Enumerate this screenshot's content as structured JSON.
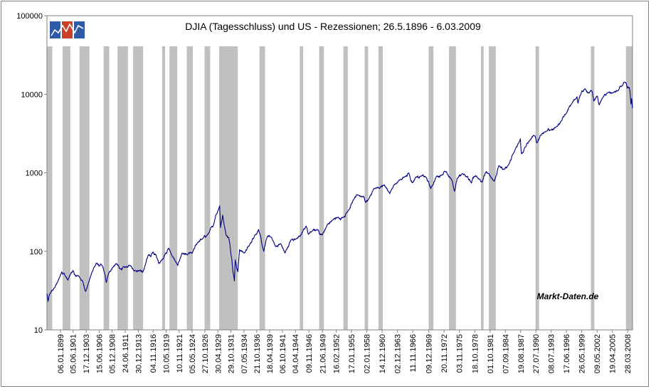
{
  "chart_data": {
    "type": "line",
    "title": "DJIA (Tagesschluss) und US - Rezessionen; 26.5.1896 - 6.03.2009",
    "watermark": "Markt-Daten.de",
    "y_scale": "log",
    "ylim": [
      10,
      100000
    ],
    "y_ticks": [
      "100000",
      "10000",
      "1000",
      "100",
      "10"
    ],
    "x_range": [
      "1896-05-26",
      "2009-03-06"
    ],
    "x_tick_labels": [
      "06.01.1899",
      "05.06.1901",
      "17.12.1903",
      "15.06.1906",
      "05.12.1908",
      "24.06.1911",
      "30.12.1913",
      "04.11.1916",
      "10.05.1919",
      "10.11.1921",
      "05.05.1924",
      "27.10.1926",
      "30.04.1929",
      "29.10.1931",
      "07.05.1934",
      "21.10.1936",
      "18.04.1939",
      "06.10.1941",
      "04.04.1944",
      "09.11.1946",
      "21.06.1949",
      "16.02.1952",
      "17.01.1955",
      "02.01.1958",
      "14.12.1960",
      "02.12.1963",
      "11.11.1966",
      "09.12.1969",
      "20.11.1972",
      "03.11.1975",
      "18.10.1978",
      "01.10.1981",
      "07.09.1984",
      "19.08.1987",
      "27.07.1990",
      "08.07.1993",
      "17.06.1996",
      "26.05.1999",
      "09.05.2002",
      "19.04.2005",
      "28.03.2008"
    ],
    "x_tick_dates": [
      "1899-01-06",
      "1901-06-05",
      "1903-12-17",
      "1906-06-15",
      "1908-12-05",
      "1911-06-24",
      "1913-12-30",
      "1916-11-04",
      "1919-05-10",
      "1921-11-10",
      "1924-05-05",
      "1926-10-27",
      "1929-04-30",
      "1931-10-29",
      "1934-05-07",
      "1936-10-21",
      "1939-04-18",
      "1941-10-06",
      "1944-04-04",
      "1946-11-09",
      "1949-06-21",
      "1952-02-16",
      "1955-01-17",
      "1958-01-02",
      "1960-12-14",
      "1963-12-02",
      "1966-11-11",
      "1969-12-09",
      "1972-11-20",
      "1975-11-03",
      "1978-10-18",
      "1981-10-01",
      "1984-09-07",
      "1987-08-19",
      "1990-07-27",
      "1993-07-08",
      "1996-06-17",
      "1999-05-26",
      "2002-05-09",
      "2005-04-19",
      "2008-03-28"
    ],
    "grid": false,
    "legend": "none",
    "colors": {
      "line": "#000080",
      "recession": "#c0c0c0",
      "logo_blue": "#2e5aa8",
      "logo_red": "#c8402a"
    },
    "recessions": [
      [
        "1896-05-26",
        "1897-06-01"
      ],
      [
        "1899-06-01",
        "1900-12-01"
      ],
      [
        "1902-09-01",
        "1904-08-01"
      ],
      [
        "1907-05-01",
        "1908-06-01"
      ],
      [
        "1910-01-01",
        "1912-01-01"
      ],
      [
        "1913-01-01",
        "1914-12-01"
      ],
      [
        "1918-08-01",
        "1919-03-01"
      ],
      [
        "1920-01-01",
        "1921-07-01"
      ],
      [
        "1923-05-01",
        "1924-07-01"
      ],
      [
        "1926-10-01",
        "1927-11-01"
      ],
      [
        "1929-08-01",
        "1933-03-01"
      ],
      [
        "1937-05-01",
        "1938-06-01"
      ],
      [
        "1945-02-01",
        "1945-10-01"
      ],
      [
        "1948-11-01",
        "1949-10-01"
      ],
      [
        "1953-07-01",
        "1954-05-01"
      ],
      [
        "1957-08-01",
        "1958-04-01"
      ],
      [
        "1960-04-01",
        "1961-02-01"
      ],
      [
        "1969-12-01",
        "1970-11-01"
      ],
      [
        "1973-11-01",
        "1975-03-01"
      ],
      [
        "1980-01-01",
        "1980-07-01"
      ],
      [
        "1981-07-01",
        "1982-11-01"
      ],
      [
        "1990-07-01",
        "1991-03-01"
      ],
      [
        "2001-03-01",
        "2001-11-01"
      ],
      [
        "2007-12-01",
        "2009-03-06"
      ]
    ],
    "series": [
      {
        "points": [
          [
            "1896-05-26",
            29
          ],
          [
            "1896-08-08",
            23
          ],
          [
            "1897-01-01",
            29
          ],
          [
            "1897-09-01",
            33
          ],
          [
            "1898-06-01",
            40
          ],
          [
            "1899-04-01",
            55
          ],
          [
            "1899-09-01",
            53
          ],
          [
            "1900-01-01",
            48
          ],
          [
            "1900-06-01",
            43
          ],
          [
            "1901-06-01",
            57
          ],
          [
            "1901-12-01",
            48
          ],
          [
            "1902-06-01",
            49
          ],
          [
            "1903-04-01",
            42
          ],
          [
            "1903-11-01",
            31
          ],
          [
            "1904-06-01",
            40
          ],
          [
            "1905-06-01",
            62
          ],
          [
            "1906-01-01",
            71
          ],
          [
            "1906-06-01",
            65
          ],
          [
            "1907-01-01",
            66
          ],
          [
            "1907-06-01",
            55
          ],
          [
            "1907-11-01",
            40
          ],
          [
            "1908-06-01",
            55
          ],
          [
            "1909-01-01",
            62
          ],
          [
            "1909-10-01",
            70
          ],
          [
            "1910-06-01",
            60
          ],
          [
            "1911-06-01",
            62
          ],
          [
            "1912-06-01",
            66
          ],
          [
            "1913-06-01",
            57
          ],
          [
            "1914-06-01",
            58
          ],
          [
            "1914-12-01",
            55
          ],
          [
            "1915-06-01",
            70
          ],
          [
            "1915-12-01",
            90
          ],
          [
            "1916-06-01",
            85
          ],
          [
            "1916-11-01",
            98
          ],
          [
            "1917-06-01",
            90
          ],
          [
            "1917-12-01",
            70
          ],
          [
            "1918-06-01",
            75
          ],
          [
            "1919-04-01",
            95
          ],
          [
            "1919-11-01",
            110
          ],
          [
            "1920-06-01",
            90
          ],
          [
            "1921-08-01",
            66
          ],
          [
            "1922-06-01",
            95
          ],
          [
            "1923-06-01",
            90
          ],
          [
            "1924-06-01",
            95
          ],
          [
            "1925-06-01",
            130
          ],
          [
            "1926-06-01",
            145
          ],
          [
            "1927-06-01",
            165
          ],
          [
            "1928-06-01",
            210
          ],
          [
            "1928-12-01",
            290
          ],
          [
            "1929-09-01",
            380
          ],
          [
            "1929-11-01",
            200
          ],
          [
            "1930-04-01",
            290
          ],
          [
            "1930-12-01",
            160
          ],
          [
            "1931-06-01",
            150
          ],
          [
            "1932-01-01",
            80
          ],
          [
            "1932-07-01",
            42
          ],
          [
            "1932-09-01",
            78
          ],
          [
            "1933-03-01",
            55
          ],
          [
            "1933-07-01",
            105
          ],
          [
            "1934-06-01",
            95
          ],
          [
            "1935-06-01",
            120
          ],
          [
            "1936-06-01",
            160
          ],
          [
            "1937-03-01",
            190
          ],
          [
            "1937-11-01",
            120
          ],
          [
            "1938-03-01",
            100
          ],
          [
            "1938-11-01",
            155
          ],
          [
            "1939-09-01",
            150
          ],
          [
            "1940-06-01",
            115
          ],
          [
            "1941-06-01",
            125
          ],
          [
            "1942-04-01",
            95
          ],
          [
            "1943-06-01",
            140
          ],
          [
            "1944-06-01",
            145
          ],
          [
            "1945-06-01",
            165
          ],
          [
            "1946-05-01",
            210
          ],
          [
            "1946-10-01",
            165
          ],
          [
            "1947-06-01",
            180
          ],
          [
            "1948-06-01",
            190
          ],
          [
            "1949-06-01",
            162
          ],
          [
            "1950-06-01",
            220
          ],
          [
            "1951-06-01",
            250
          ],
          [
            "1952-06-01",
            270
          ],
          [
            "1953-06-01",
            270
          ],
          [
            "1954-06-01",
            330
          ],
          [
            "1955-06-01",
            450
          ],
          [
            "1956-04-01",
            520
          ],
          [
            "1957-06-01",
            500
          ],
          [
            "1957-10-01",
            420
          ],
          [
            "1958-06-01",
            470
          ],
          [
            "1959-06-01",
            630
          ],
          [
            "1960-06-01",
            630
          ],
          [
            "1961-06-01",
            700
          ],
          [
            "1962-06-01",
            540
          ],
          [
            "1963-06-01",
            720
          ],
          [
            "1964-06-01",
            820
          ],
          [
            "1965-06-01",
            900
          ],
          [
            "1966-02-01",
            995
          ],
          [
            "1966-10-01",
            745
          ],
          [
            "1967-06-01",
            880
          ],
          [
            "1968-06-01",
            910
          ],
          [
            "1969-06-01",
            880
          ],
          [
            "1970-05-01",
            630
          ],
          [
            "1971-06-01",
            900
          ],
          [
            "1972-06-01",
            940
          ],
          [
            "1973-01-01",
            1050
          ],
          [
            "1974-06-01",
            800
          ],
          [
            "1974-12-01",
            580
          ],
          [
            "1975-06-01",
            850
          ],
          [
            "1976-06-01",
            980
          ],
          [
            "1977-06-01",
            900
          ],
          [
            "1978-03-01",
            740
          ],
          [
            "1978-09-01",
            900
          ],
          [
            "1979-06-01",
            850
          ],
          [
            "1980-04-01",
            760
          ],
          [
            "1980-11-01",
            1000
          ],
          [
            "1981-06-01",
            980
          ],
          [
            "1982-08-01",
            780
          ],
          [
            "1983-06-01",
            1230
          ],
          [
            "1984-06-01",
            1100
          ],
          [
            "1985-06-01",
            1300
          ],
          [
            "1986-06-01",
            1850
          ],
          [
            "1987-08-01",
            2700
          ],
          [
            "1987-10-20",
            1750
          ],
          [
            "1988-06-01",
            2100
          ],
          [
            "1989-06-01",
            2600
          ],
          [
            "1990-06-01",
            2950
          ],
          [
            "1990-10-01",
            2400
          ],
          [
            "1991-06-01",
            3000
          ],
          [
            "1992-06-01",
            3300
          ],
          [
            "1993-06-01",
            3500
          ],
          [
            "1994-06-01",
            3800
          ],
          [
            "1995-06-01",
            4500
          ],
          [
            "1996-06-01",
            5700
          ],
          [
            "1997-06-01",
            7500
          ],
          [
            "1998-07-01",
            9300
          ],
          [
            "1998-09-01",
            7700
          ],
          [
            "1999-06-01",
            11000
          ],
          [
            "2000-01-01",
            11700
          ],
          [
            "2000-10-01",
            10300
          ],
          [
            "2001-06-01",
            10800
          ],
          [
            "2001-09-21",
            8200
          ],
          [
            "2002-06-01",
            9500
          ],
          [
            "2002-10-01",
            7300
          ],
          [
            "2003-06-01",
            9000
          ],
          [
            "2004-06-01",
            10400
          ],
          [
            "2005-06-01",
            10400
          ],
          [
            "2006-06-01",
            11100
          ],
          [
            "2007-01-01",
            12500
          ],
          [
            "2007-10-01",
            14100
          ],
          [
            "2008-03-01",
            12000
          ],
          [
            "2008-06-01",
            12000
          ],
          [
            "2008-09-01",
            11200
          ],
          [
            "2008-11-20",
            7500
          ],
          [
            "2009-01-01",
            8800
          ],
          [
            "2009-03-06",
            6600
          ]
        ]
      }
    ]
  }
}
